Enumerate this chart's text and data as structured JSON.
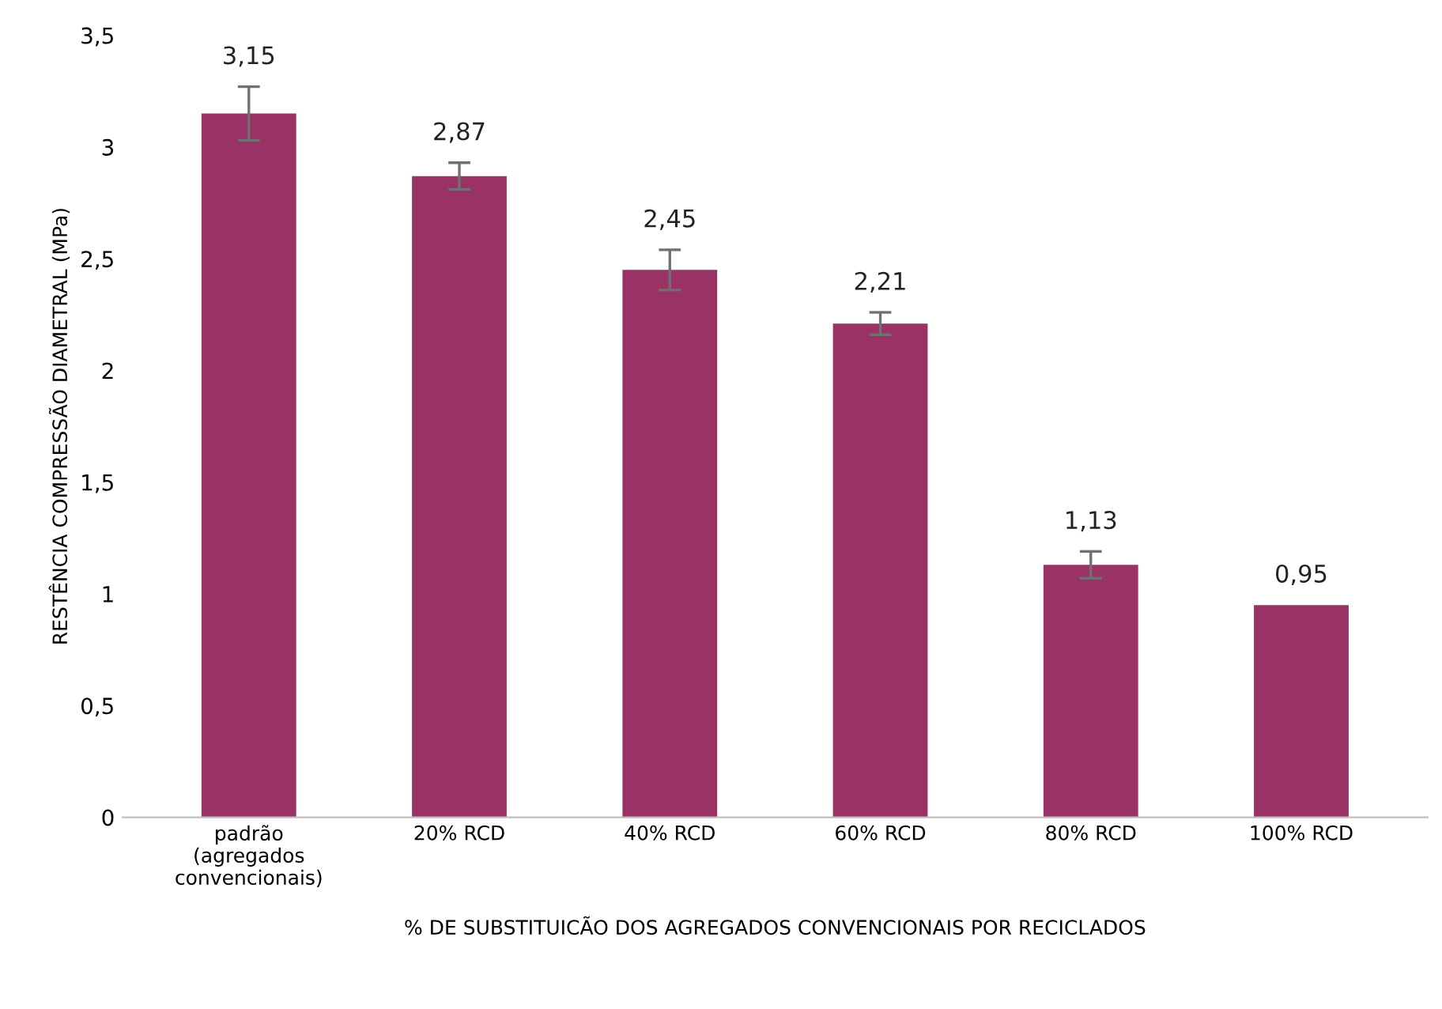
{
  "chart_data": {
    "type": "bar",
    "ylabel": "RESTÊNCIA COMPRESSÃO DIAMETRAL (MPa)",
    "xlabel": "% DE SUBSTITUICÃO DOS AGREGADOS CONVENCIONAIS POR RECICLADOS",
    "categories": [
      "padrão\n(agregados\nconvencionais)",
      "20% RCD",
      "40% RCD",
      "60% RCD",
      "80% RCD",
      "100% RCD"
    ],
    "values": [
      3.15,
      2.87,
      2.45,
      2.21,
      1.13,
      0.95
    ],
    "errors": [
      0.12,
      0.06,
      0.09,
      0.05,
      0.06,
      null
    ],
    "value_labels": [
      "3,15",
      "2,87",
      "2,45",
      "2,21",
      "1,13",
      "0,95"
    ],
    "color": "#993366",
    "ylim": [
      0,
      3.5
    ],
    "yticks": [
      0,
      {
        "value": 0.5,
        "label": "0,5"
      },
      1,
      {
        "value": 1.5,
        "label": "1,5"
      },
      2,
      {
        "value": 2.5,
        "label": "2,5"
      },
      3,
      {
        "value": 3.5,
        "label": "3,5"
      }
    ],
    "grid": false
  }
}
